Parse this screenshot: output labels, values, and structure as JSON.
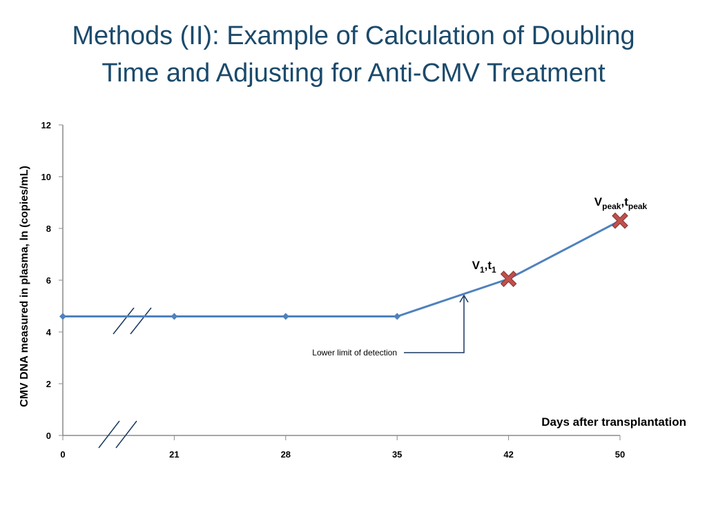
{
  "slide": {
    "title": [
      "Methods (II): Example of Calculation of Doubling",
      "Time and Adjusting for  Anti-CMV Treatment"
    ]
  },
  "chart_data": {
    "type": "line",
    "y_label": "CMV DNA measured in plasma, ln (copies/mL)",
    "x_label": "Days after transplantation",
    "categories": [
      "0",
      "21",
      "28",
      "35",
      "42",
      "50"
    ],
    "series": [
      {
        "color": "#4f81bd",
        "values": [
          4.6,
          4.6,
          4.6,
          4.6,
          6.05,
          8.3
        ],
        "markers": [
          "diamond",
          "diamond",
          "diamond",
          "diamond",
          "x",
          "x"
        ]
      }
    ],
    "ylim": [
      0,
      12
    ],
    "yticks": [
      0,
      2,
      4,
      6,
      8,
      10,
      12
    ],
    "point_labels": [
      {
        "index": 4,
        "parts": [
          "V",
          "1",
          ",t",
          "1"
        ]
      },
      {
        "index": 5,
        "parts": [
          "V",
          "peak",
          ",t",
          "peak"
        ]
      }
    ],
    "annotation": "Lower limit of detection"
  }
}
